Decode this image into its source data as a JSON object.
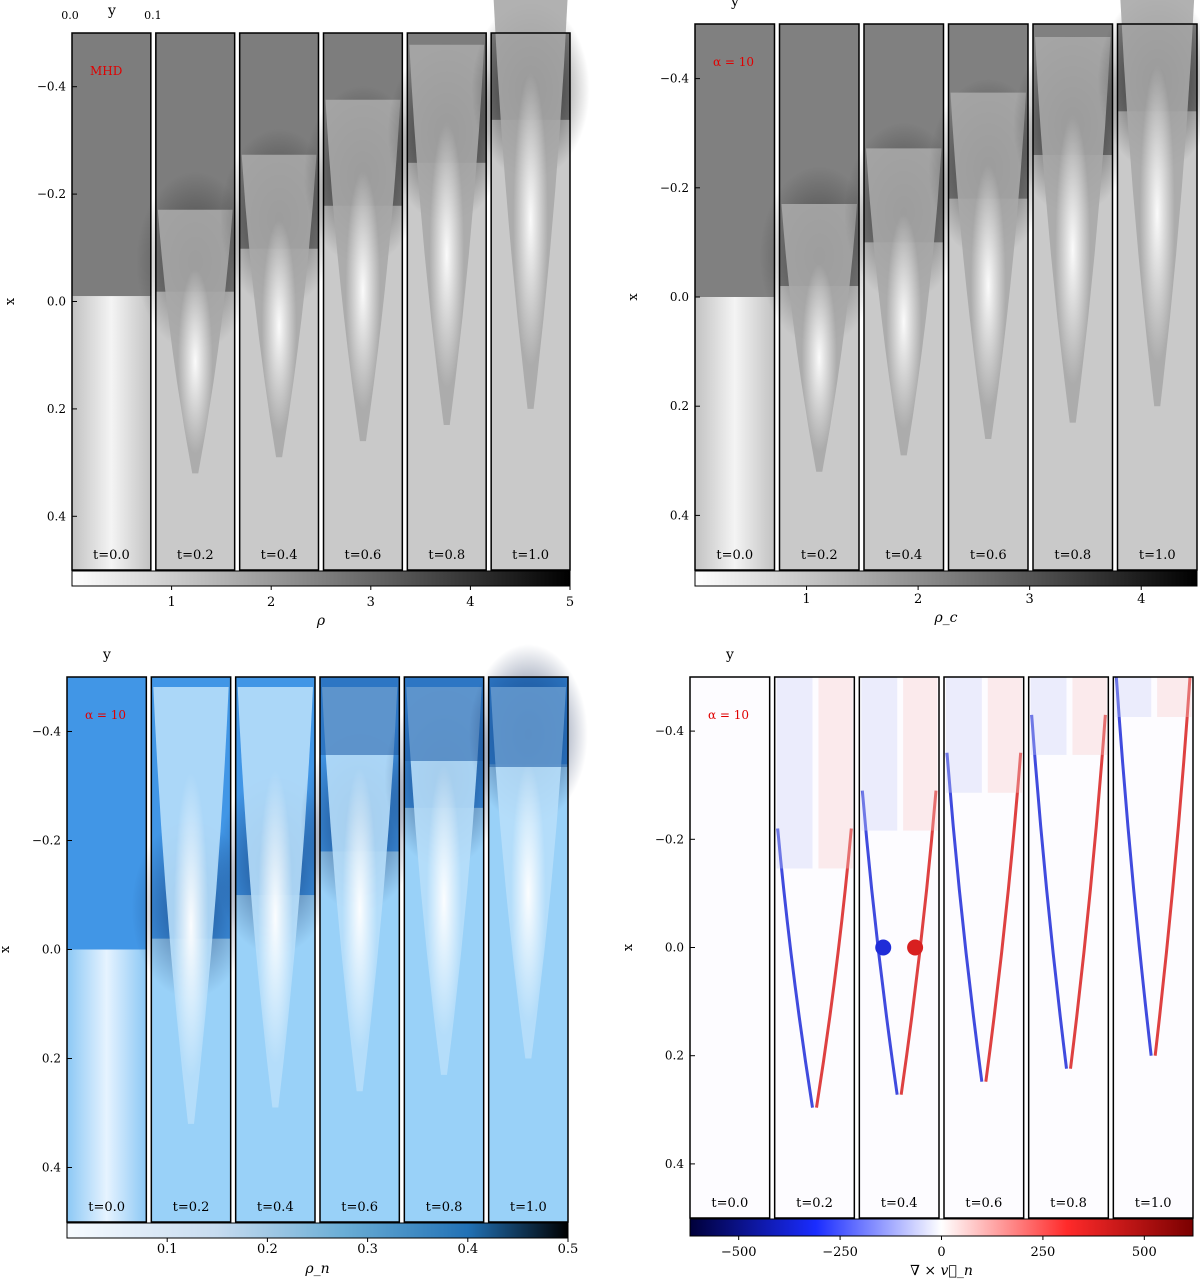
{
  "figure": {
    "panels": [
      {
        "id": "top-left",
        "label": "MHD",
        "yaxis_label": "y",
        "yaxis_ticks": [
          "0.0",
          "0.1"
        ],
        "xaxis_label": "x",
        "xaxis_ticks": [
          "−0.4",
          "−0.2",
          "0.0",
          "0.2",
          "0.4"
        ],
        "time_labels": [
          "t=0.0",
          "t=0.2",
          "t=0.4",
          "t=0.6",
          "t=0.8",
          "t=1.0"
        ],
        "colorbar": {
          "label": "ρ",
          "ticks": [
            "1",
            "2",
            "3",
            "4",
            "5"
          ],
          "range": [
            0,
            5
          ],
          "cmap": "gray"
        }
      },
      {
        "id": "top-right",
        "label": "α = 10",
        "yaxis_label": "y",
        "xaxis_label": "x",
        "xaxis_ticks": [
          "−0.4",
          "−0.2",
          "0.0",
          "0.2",
          "0.4"
        ],
        "time_labels": [
          "t=0.0",
          "t=0.2",
          "t=0.4",
          "t=0.6",
          "t=0.8",
          "t=1.0"
        ],
        "colorbar": {
          "label": "ρ_c",
          "ticks": [
            "1",
            "2",
            "3",
            "4"
          ],
          "range": [
            0,
            4.5
          ],
          "cmap": "gray"
        }
      },
      {
        "id": "bottom-left",
        "label": "α = 10",
        "yaxis_label": "y",
        "xaxis_label": "x",
        "xaxis_ticks": [
          "−0.4",
          "−0.2",
          "0.0",
          "0.2",
          "0.4"
        ],
        "time_labels": [
          "t=0.0",
          "t=0.2",
          "t=0.4",
          "t=0.6",
          "t=0.8",
          "t=1.0"
        ],
        "colorbar": {
          "label": "ρ_n",
          "ticks": [
            "0.1",
            "0.2",
            "0.3",
            "0.4",
            "0.5"
          ],
          "range": [
            0,
            0.5
          ],
          "cmap": "blues"
        }
      },
      {
        "id": "bottom-right",
        "label": "α = 10",
        "yaxis_label": "y",
        "xaxis_label": "x",
        "xaxis_ticks": [
          "−0.4",
          "−0.2",
          "0.0",
          "0.2",
          "0.4"
        ],
        "time_labels": [
          "t=0.0",
          "t=0.2",
          "t=0.4",
          "t=0.6",
          "t=0.8",
          "t=1.0"
        ],
        "colorbar": {
          "label": "∇ × v⃗_n",
          "ticks": [
            "−500",
            "−250",
            "0",
            "250",
            "500"
          ],
          "range": [
            -620,
            620
          ],
          "cmap": "seismic"
        }
      }
    ]
  }
}
